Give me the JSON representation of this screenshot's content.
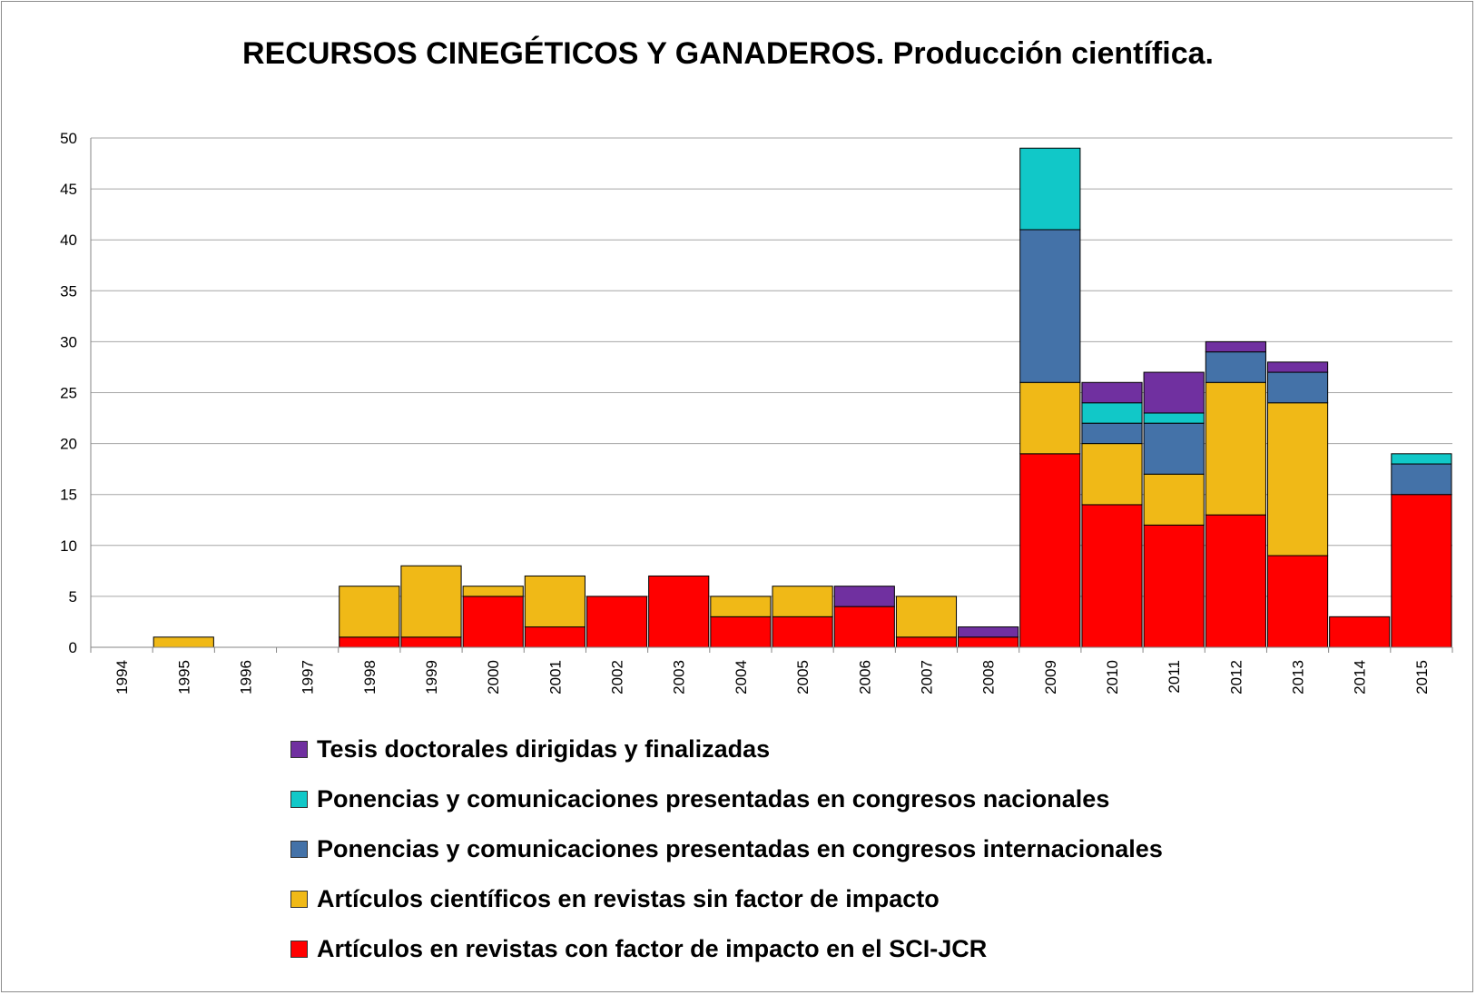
{
  "chart_data": {
    "type": "bar",
    "stacked": true,
    "title": "RECURSOS CINEGÉTICOS Y GANADEROS. Producción científica.",
    "xlabel": "",
    "ylabel": "",
    "ylim": [
      0,
      50
    ],
    "yticks": [
      "0",
      "5",
      "10",
      "15",
      "20",
      "25",
      "30",
      "35",
      "40",
      "45",
      "50"
    ],
    "grid": true,
    "legend_position": "bottom",
    "categories": [
      "1994",
      "1995",
      "1996",
      "1997",
      "1998",
      "1999",
      "2000",
      "2001",
      "2002",
      "2003",
      "2004",
      "2005",
      "2006",
      "2007",
      "2008",
      "2009",
      "2010",
      "2011",
      "2012",
      "2013",
      "2014",
      "2015"
    ],
    "series": [
      {
        "name": "Artículos en revistas con factor de impacto en el SCI-JCR",
        "color": "#ff0000",
        "values": [
          0,
          0,
          0,
          0,
          1,
          1,
          5,
          2,
          5,
          7,
          3,
          3,
          4,
          1,
          1,
          19,
          14,
          12,
          13,
          9,
          3,
          15
        ]
      },
      {
        "name": "Artículos científicos en revistas sin factor de impacto",
        "color": "#f0b917",
        "values": [
          0,
          1,
          0,
          0,
          5,
          7,
          1,
          5,
          0,
          0,
          2,
          3,
          0,
          4,
          0,
          7,
          6,
          5,
          13,
          15,
          0,
          0
        ]
      },
      {
        "name": "Ponencias y comunicaciones presentadas en congresos internacionales",
        "color": "#4472a8",
        "values": [
          0,
          0,
          0,
          0,
          0,
          0,
          0,
          0,
          0,
          0,
          0,
          0,
          0,
          0,
          0,
          15,
          2,
          5,
          3,
          3,
          0,
          3
        ]
      },
      {
        "name": "Ponencias y comunicaciones presentadas en congresos nacionales",
        "color": "#11c8c8",
        "values": [
          0,
          0,
          0,
          0,
          0,
          0,
          0,
          0,
          0,
          0,
          0,
          0,
          0,
          0,
          0,
          8,
          2,
          1,
          0,
          0,
          0,
          1
        ]
      },
      {
        "name": "Tesis doctorales dirigidas y finalizadas",
        "color": "#7030a0",
        "values": [
          0,
          0,
          0,
          0,
          0,
          0,
          0,
          0,
          0,
          0,
          0,
          0,
          2,
          0,
          1,
          0,
          2,
          4,
          1,
          1,
          0,
          0
        ]
      }
    ],
    "legend_order": [
      4,
      3,
      2,
      1,
      0
    ]
  }
}
